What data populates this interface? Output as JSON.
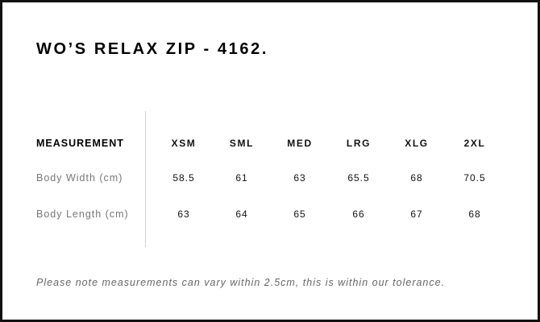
{
  "title": "WO’S RELAX ZIP - 4162.",
  "table": {
    "header_label": "MEASUREMENT",
    "sizes": [
      "XSM",
      "SML",
      "MED",
      "LRG",
      "XLG",
      "2XL"
    ],
    "rows": [
      {
        "label": "Body Width (cm)",
        "values": [
          "58.5",
          "61",
          "63",
          "65.5",
          "68",
          "70.5"
        ]
      },
      {
        "label": "Body Length (cm)",
        "values": [
          "63",
          "64",
          "65",
          "66",
          "67",
          "68"
        ]
      }
    ]
  },
  "note": "Please note measurements can vary within 2.5cm, this is within our tolerance."
}
